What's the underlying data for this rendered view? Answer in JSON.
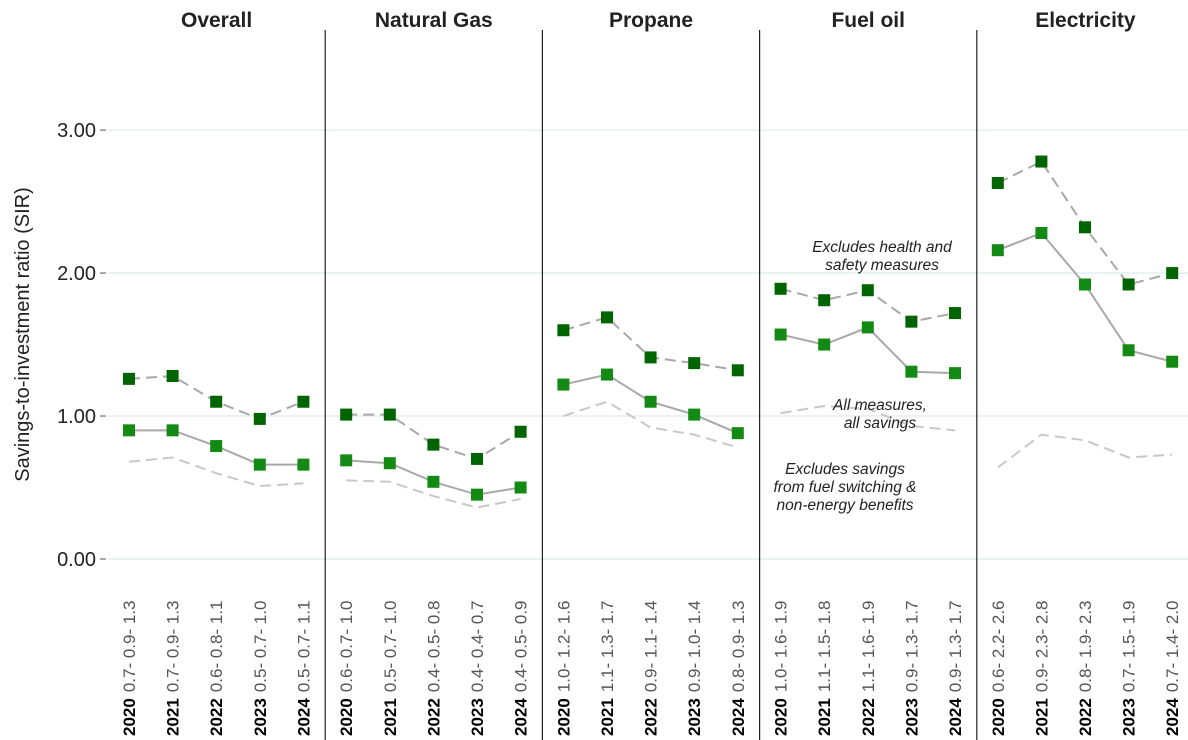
{
  "chart_data": [
    {
      "type": "line",
      "title": "Overall",
      "y_label": "Savings-to-investment ratio (SIR)",
      "ylim": [
        0,
        3.7
      ],
      "yticks": [
        {
          "value": 0,
          "label": "0.00"
        },
        {
          "value": 1,
          "label": "1.00"
        },
        {
          "value": 2,
          "label": "2.00"
        },
        {
          "value": 3,
          "label": "3.00"
        }
      ],
      "grid": true,
      "categories": [
        "2020",
        "2021",
        "2022",
        "2023",
        "2024"
      ],
      "x_sublabels": [
        "0.7- 0.9- 1.3",
        "0.7- 0.9- 1.3",
        "0.6- 0.8- 1.1",
        "0.5- 0.7- 1.0",
        "0.5- 0.7- 1.1"
      ],
      "series": [
        {
          "color": "#006400",
          "line_color": "#a8a8a8",
          "dash": true,
          "marker": true,
          "values": [
            1.26,
            1.28,
            1.1,
            0.98,
            1.1
          ]
        },
        {
          "color": "#138a13",
          "line_color": "#a8a8a8",
          "dash": false,
          "marker": true,
          "values": [
            0.9,
            0.9,
            0.79,
            0.66,
            0.66
          ]
        },
        {
          "color": "#c8c8c8",
          "line_color": "#c8c8c8",
          "dash": true,
          "marker": false,
          "values": [
            0.68,
            0.71,
            0.6,
            0.51,
            0.53
          ]
        }
      ]
    },
    {
      "type": "line",
      "title": "Natural Gas",
      "categories": [
        "2020",
        "2021",
        "2022",
        "2023",
        "2024"
      ],
      "x_sublabels": [
        "0.6- 0.7- 1.0",
        "0.5- 0.7- 1.0",
        "0.4- 0.5- 0.8",
        "0.4- 0.4- 0.7",
        "0.4- 0.5- 0.9"
      ],
      "series": [
        {
          "color": "#006400",
          "line_color": "#a8a8a8",
          "dash": true,
          "marker": true,
          "values": [
            1.01,
            1.01,
            0.8,
            0.7,
            0.89
          ]
        },
        {
          "color": "#138a13",
          "line_color": "#a8a8a8",
          "dash": false,
          "marker": true,
          "values": [
            0.69,
            0.67,
            0.54,
            0.45,
            0.5
          ]
        },
        {
          "color": "#c8c8c8",
          "line_color": "#c8c8c8",
          "dash": true,
          "marker": false,
          "values": [
            0.55,
            0.54,
            0.44,
            0.36,
            0.42
          ]
        }
      ]
    },
    {
      "type": "line",
      "title": "Propane",
      "categories": [
        "2020",
        "2021",
        "2022",
        "2023",
        "2024"
      ],
      "x_sublabels": [
        "1.0- 1.2- 1.6",
        "1.1- 1.3- 1.7",
        "0.9- 1.1- 1.4",
        "0.9- 1.0- 1.4",
        "0.8- 0.9- 1.3"
      ],
      "series": [
        {
          "color": "#006400",
          "line_color": "#a8a8a8",
          "dash": true,
          "marker": true,
          "values": [
            1.6,
            1.69,
            1.41,
            1.37,
            1.32
          ]
        },
        {
          "color": "#138a13",
          "line_color": "#a8a8a8",
          "dash": false,
          "marker": true,
          "values": [
            1.22,
            1.29,
            1.1,
            1.01,
            0.88
          ]
        },
        {
          "color": "#c8c8c8",
          "line_color": "#c8c8c8",
          "dash": true,
          "marker": false,
          "values": [
            1.0,
            1.1,
            0.92,
            0.87,
            0.78
          ]
        }
      ]
    },
    {
      "type": "line",
      "title": "Fuel oil",
      "categories": [
        "2020",
        "2021",
        "2022",
        "2023",
        "2024"
      ],
      "x_sublabels": [
        "1.0- 1.6- 1.9",
        "1.1- 1.5- 1.8",
        "1.1- 1.6- 1.9",
        "0.9- 1.3- 1.7",
        "0.9- 1.3- 1.7"
      ],
      "series": [
        {
          "color": "#006400",
          "line_color": "#a8a8a8",
          "dash": true,
          "marker": true,
          "values": [
            1.89,
            1.81,
            1.88,
            1.66,
            1.72
          ]
        },
        {
          "color": "#138a13",
          "line_color": "#a8a8a8",
          "dash": false,
          "marker": true,
          "values": [
            1.57,
            1.5,
            1.62,
            1.31,
            1.3
          ]
        },
        {
          "color": "#c8c8c8",
          "line_color": "#c8c8c8",
          "dash": true,
          "marker": false,
          "values": [
            1.02,
            1.07,
            1.05,
            0.93,
            0.9
          ]
        }
      ],
      "annotations": [
        [
          "Excludes health and",
          "safety measures"
        ],
        [
          "All measures,",
          "all savings"
        ],
        [
          "Excludes savings",
          "from fuel switching &",
          "non-energy benefits"
        ]
      ]
    },
    {
      "type": "line",
      "title": "Electricity",
      "categories": [
        "2020",
        "2021",
        "2022",
        "2023",
        "2024"
      ],
      "x_sublabels": [
        "0.6- 2.2- 2.6",
        "0.9- 2.3- 2.8",
        "0.8- 1.9- 2.3",
        "0.7- 1.5- 1.9",
        "0.7- 1.4- 2.0"
      ],
      "series": [
        {
          "color": "#006400",
          "line_color": "#a8a8a8",
          "dash": true,
          "marker": true,
          "values": [
            2.63,
            2.78,
            2.32,
            1.92,
            2.0
          ]
        },
        {
          "color": "#138a13",
          "line_color": "#a8a8a8",
          "dash": false,
          "marker": true,
          "values": [
            2.16,
            2.28,
            1.92,
            1.46,
            1.38
          ]
        },
        {
          "color": "#c8c8c8",
          "line_color": "#c8c8c8",
          "dash": true,
          "marker": false,
          "values": [
            0.64,
            0.87,
            0.83,
            0.71,
            0.73
          ]
        }
      ]
    }
  ]
}
